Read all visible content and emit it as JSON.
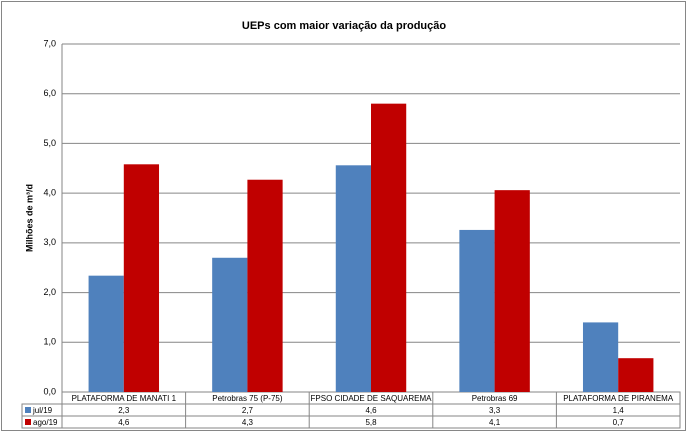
{
  "chart_data": {
    "type": "bar",
    "title": "UEPs com maior variação da produção",
    "y_label": "Milhões de m³/d",
    "categories": [
      "PLATAFORMA DE MANATI 1",
      "Petrobras 75 (P-75)",
      "FPSO CIDADE DE SAQUAREMA",
      "Petrobras 69",
      "PLATAFORMA DE PIRANEMA"
    ],
    "series": [
      {
        "name": "jul/19",
        "color": "#4f81bd",
        "values": [
          2.34,
          2.7,
          4.56,
          3.26,
          1.4
        ],
        "value_labels": [
          "2,3",
          "2,7",
          "4,6",
          "3,3",
          "1,4"
        ]
      },
      {
        "name": "ago/19",
        "color": "#c00000",
        "values": [
          4.58,
          4.27,
          5.8,
          4.06,
          0.68
        ],
        "value_labels": [
          "4,6",
          "4,3",
          "5,8",
          "4,1",
          "0,7"
        ]
      }
    ],
    "ylim": [
      0,
      7
    ],
    "yticks": [
      {
        "value": 0,
        "label": "0,0"
      },
      {
        "value": 1,
        "label": "1,0"
      },
      {
        "value": 2,
        "label": "2,0"
      },
      {
        "value": 3,
        "label": "3,0"
      },
      {
        "value": 4,
        "label": "4,0"
      },
      {
        "value": 5,
        "label": "5,0"
      },
      {
        "value": 6,
        "label": "6,0"
      },
      {
        "value": 7,
        "label": "7,0"
      }
    ],
    "grid": true
  }
}
